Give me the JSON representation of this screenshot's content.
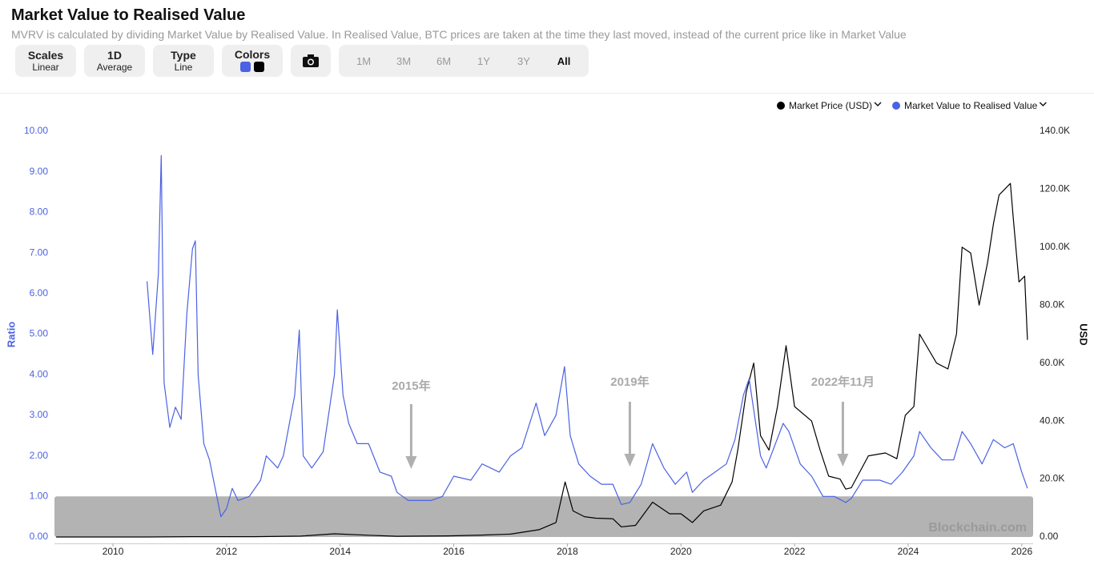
{
  "header": {
    "title": "Market Value to Realised Value",
    "subtitle": "MVRV is calculated by dividing Market Value by Realised Value. In Realised Value, BTC prices are taken at the time they last moved, instead of the current price like in Market Value"
  },
  "toolbar": {
    "scales": [
      "Scales",
      "Linear"
    ],
    "resolution": [
      "1D",
      "Average"
    ],
    "type": [
      "Type",
      "Line"
    ],
    "colors": "Colors",
    "ranges": [
      "1M",
      "3M",
      "6M",
      "1Y",
      "3Y",
      "All"
    ]
  },
  "chart_data": {
    "type": "line",
    "xlim": [
      2008.97,
      2026.2
    ],
    "xticks": [
      2010,
      2012,
      2014,
      2016,
      2018,
      2020,
      2022,
      2024,
      2026
    ],
    "ylim": [
      0,
      10
    ],
    "yticks": [
      {
        "value": 0,
        "label": "0.00"
      },
      {
        "value": 1,
        "label": "1.00"
      },
      {
        "value": 2,
        "label": "2.00"
      },
      {
        "value": 3,
        "label": "3.00"
      },
      {
        "value": 4,
        "label": "4.00"
      },
      {
        "value": 5,
        "label": "5.00"
      },
      {
        "value": 6,
        "label": "6.00"
      },
      {
        "value": 7,
        "label": "7.00"
      },
      {
        "value": 8,
        "label": "8.00"
      },
      {
        "value": 9,
        "label": "9.00"
      },
      {
        "value": 10,
        "label": "10.00"
      }
    ],
    "y2lim": [
      0,
      140000
    ],
    "y2ticks": [
      {
        "value": 0,
        "label": "0.00"
      },
      {
        "value": 20000,
        "label": "20.0K"
      },
      {
        "value": 40000,
        "label": "40.0K"
      },
      {
        "value": 60000,
        "label": "60.0K"
      },
      {
        "value": 80000,
        "label": "80.0K"
      },
      {
        "value": 100000,
        "label": "100.0K"
      },
      {
        "value": 120000,
        "label": "120.0K"
      },
      {
        "value": 140000,
        "label": "140.0K"
      }
    ],
    "ylabel": "Ratio",
    "y2label": "USD",
    "band": [
      0,
      1
    ],
    "band_color": "#b3b3b3",
    "watermark": "Blockchain.com",
    "annotations": [
      {
        "text": "2015年",
        "x": 2015.25
      },
      {
        "text": "2019年",
        "x": 2019.1
      },
      {
        "text": "2022年11月",
        "x": 2022.85
      }
    ],
    "series": [
      {
        "name": "Market Price (USD)",
        "color": "#000000",
        "axis": "y2",
        "x": [
          2009.0,
          2010.6,
          2011.4,
          2012.5,
          2013.3,
          2013.9,
          2014.5,
          2015.0,
          2015.9,
          2016.5,
          2017.0,
          2017.5,
          2017.8,
          2017.96,
          2018.1,
          2018.3,
          2018.5,
          2018.8,
          2018.95,
          2019.2,
          2019.5,
          2019.8,
          2020.0,
          2020.2,
          2020.4,
          2020.7,
          2020.9,
          2021.0,
          2021.15,
          2021.28,
          2021.4,
          2021.55,
          2021.7,
          2021.85,
          2022.0,
          2022.3,
          2022.45,
          2022.6,
          2022.8,
          2022.9,
          2023.0,
          2023.3,
          2023.6,
          2023.8,
          2023.95,
          2024.1,
          2024.2,
          2024.5,
          2024.7,
          2024.85,
          2024.95,
          2025.1,
          2025.25,
          2025.4,
          2025.5,
          2025.6,
          2025.8,
          2025.85,
          2025.95,
          2026.05,
          2026.1
        ],
        "values": [
          0,
          0,
          100,
          100,
          300,
          1100,
          600,
          250,
          400,
          650,
          1000,
          2500,
          5000,
          19000,
          9000,
          7000,
          6500,
          6300,
          3500,
          4000,
          12000,
          8000,
          8000,
          5000,
          9000,
          11000,
          19000,
          30000,
          50000,
          60000,
          35000,
          30000,
          45000,
          66000,
          45000,
          40000,
          30000,
          21000,
          20000,
          16500,
          17000,
          28000,
          29000,
          27000,
          42000,
          45000,
          70000,
          60000,
          58000,
          70000,
          100000,
          98000,
          80000,
          95000,
          108000,
          118000,
          122000,
          110000,
          88000,
          90000,
          68000
        ]
      },
      {
        "name": "Market Value to Realised Value",
        "color": "#4b62e3",
        "x": [
          2010.6,
          2010.7,
          2010.8,
          2010.85,
          2010.9,
          2011.0,
          2011.1,
          2011.2,
          2011.3,
          2011.4,
          2011.45,
          2011.5,
          2011.6,
          2011.7,
          2011.8,
          2011.9,
          2012.0,
          2012.1,
          2012.2,
          2012.4,
          2012.6,
          2012.7,
          2012.9,
          2013.0,
          2013.2,
          2013.28,
          2013.35,
          2013.5,
          2013.7,
          2013.9,
          2013.95,
          2014.05,
          2014.15,
          2014.3,
          2014.5,
          2014.7,
          2014.9,
          2015.0,
          2015.2,
          2015.4,
          2015.6,
          2015.8,
          2016.0,
          2016.3,
          2016.5,
          2016.8,
          2017.0,
          2017.2,
          2017.45,
          2017.6,
          2017.8,
          2017.95,
          2018.05,
          2018.2,
          2018.4,
          2018.6,
          2018.8,
          2018.95,
          2019.1,
          2019.3,
          2019.5,
          2019.7,
          2019.9,
          2020.1,
          2020.2,
          2020.4,
          2020.6,
          2020.8,
          2020.95,
          2021.1,
          2021.2,
          2021.4,
          2021.5,
          2021.8,
          2021.9,
          2022.1,
          2022.3,
          2022.5,
          2022.7,
          2022.9,
          2023.0,
          2023.2,
          2023.5,
          2023.7,
          2023.9,
          2024.1,
          2024.2,
          2024.4,
          2024.6,
          2024.8,
          2024.95,
          2025.1,
          2025.3,
          2025.5,
          2025.7,
          2025.85,
          2026.0,
          2026.1
        ],
        "values": [
          6.3,
          4.5,
          6.5,
          9.4,
          3.8,
          2.7,
          3.2,
          2.9,
          5.5,
          7.1,
          7.3,
          4.0,
          2.3,
          1.9,
          1.2,
          0.5,
          0.7,
          1.2,
          0.9,
          1.0,
          1.4,
          2.0,
          1.7,
          2.0,
          3.5,
          5.1,
          2.0,
          1.7,
          2.1,
          4.0,
          5.6,
          3.5,
          2.8,
          2.3,
          2.3,
          1.6,
          1.5,
          1.1,
          0.9,
          0.9,
          0.9,
          1.0,
          1.5,
          1.4,
          1.8,
          1.6,
          2.0,
          2.2,
          3.3,
          2.5,
          3.0,
          4.2,
          2.5,
          1.8,
          1.5,
          1.3,
          1.3,
          0.8,
          0.85,
          1.3,
          2.3,
          1.7,
          1.3,
          1.6,
          1.1,
          1.4,
          1.6,
          1.8,
          2.4,
          3.5,
          3.9,
          2.0,
          1.7,
          2.8,
          2.6,
          1.8,
          1.5,
          1.0,
          1.0,
          0.85,
          0.95,
          1.4,
          1.4,
          1.3,
          1.6,
          2.0,
          2.6,
          2.2,
          1.9,
          1.9,
          2.6,
          2.3,
          1.8,
          2.4,
          2.2,
          2.3,
          1.6,
          1.2
        ]
      }
    ]
  }
}
